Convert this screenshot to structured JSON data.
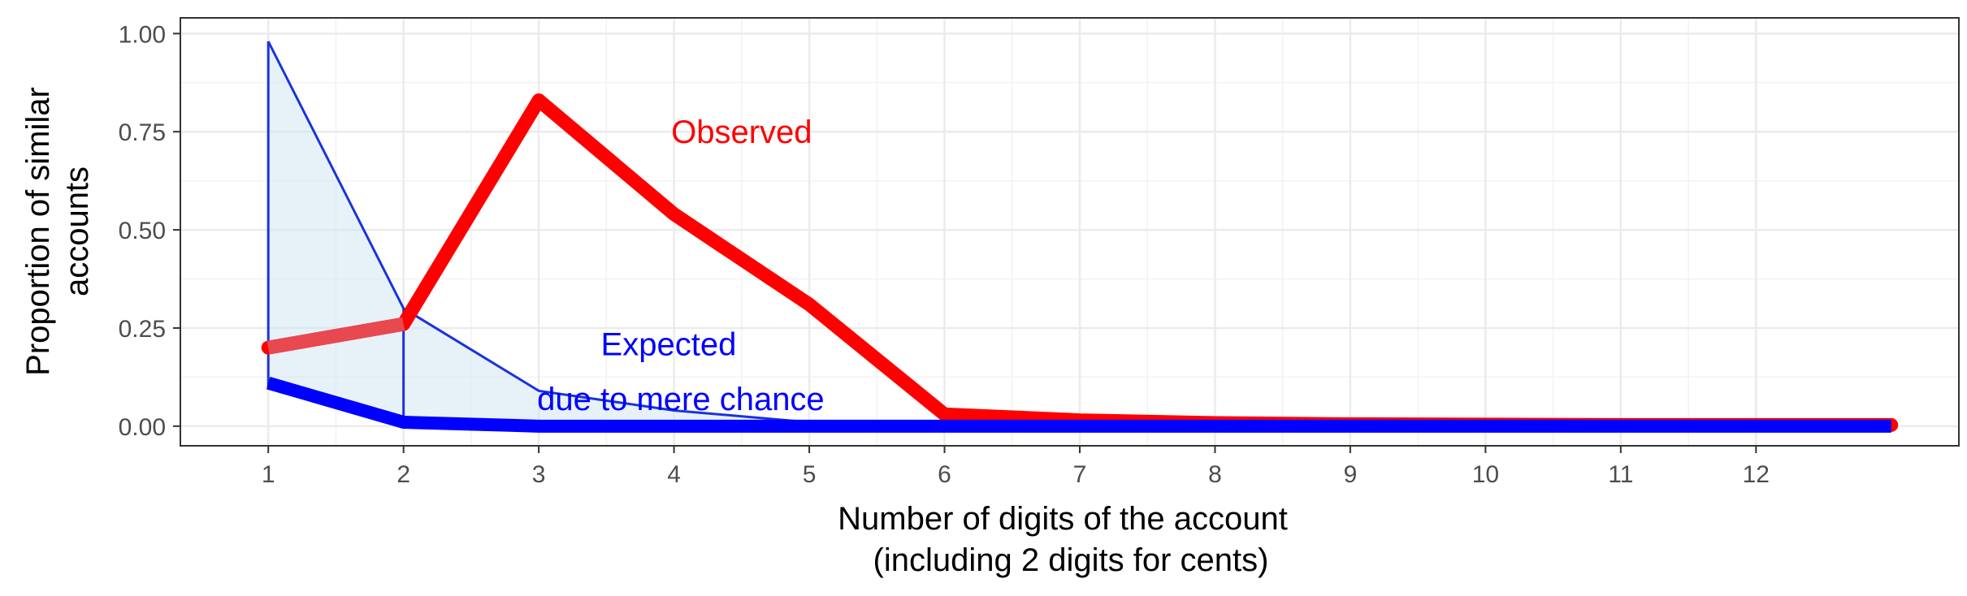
{
  "chart_data": {
    "type": "line",
    "xlabel": [
      "Number of digits of the account",
      "(including 2 digits for cents)"
    ],
    "ylabel": [
      "Proportion of similar",
      "accounts"
    ],
    "xlim": [
      0.35,
      13.5
    ],
    "ylim": [
      -0.05,
      1.04
    ],
    "x_ticks": [
      1,
      2,
      3,
      4,
      5,
      6,
      7,
      8,
      9,
      10,
      11,
      12
    ],
    "y_ticks": [
      0.0,
      0.25,
      0.5,
      0.75,
      1.0
    ],
    "y_tick_labels": [
      "0.00",
      "0.25",
      "0.50",
      "0.75",
      "1.00"
    ],
    "grid": true,
    "series": [
      {
        "name": "Observed",
        "color": "#ff0000",
        "x": [
          1,
          2,
          3,
          4,
          5,
          6,
          7,
          8,
          9,
          10,
          11,
          12,
          13
        ],
        "y": [
          0.2,
          0.26,
          0.83,
          0.54,
          0.31,
          0.03,
          0.015,
          0.008,
          0.005,
          0.004,
          0.003,
          0.003,
          0.003
        ]
      },
      {
        "name": "Expected",
        "color": "#0000ff",
        "x": [
          1,
          2,
          3,
          4,
          5,
          6,
          7,
          8,
          9,
          10,
          11,
          12,
          13
        ],
        "y": [
          0.11,
          0.01,
          0.0,
          0.0,
          0.0,
          0.0,
          0.0,
          0.0,
          0.0,
          0.0,
          0.0,
          0.0,
          0.0
        ],
        "lower": [
          0.1,
          0.0,
          -0.01,
          -0.005,
          -0.005,
          -0.003,
          -0.002,
          -0.002,
          -0.002,
          -0.002,
          -0.002,
          -0.002,
          -0.002
        ],
        "upper": [
          0.98,
          0.3,
          0.09,
          0.04,
          0.01,
          0.005,
          0.003,
          0.002,
          0.002,
          0.002,
          0.002,
          0.002,
          0.002
        ]
      }
    ],
    "annotations": [
      {
        "text": "Observed",
        "x": 4.5,
        "y": 0.75,
        "color": "#ff0000"
      },
      {
        "text": "Expected",
        "x": 3.96,
        "y": 0.21,
        "color": "#0000ff"
      },
      {
        "text": "due to mere chance",
        "x": 4.05,
        "y": 0.07,
        "color": "#0000ff"
      }
    ]
  }
}
